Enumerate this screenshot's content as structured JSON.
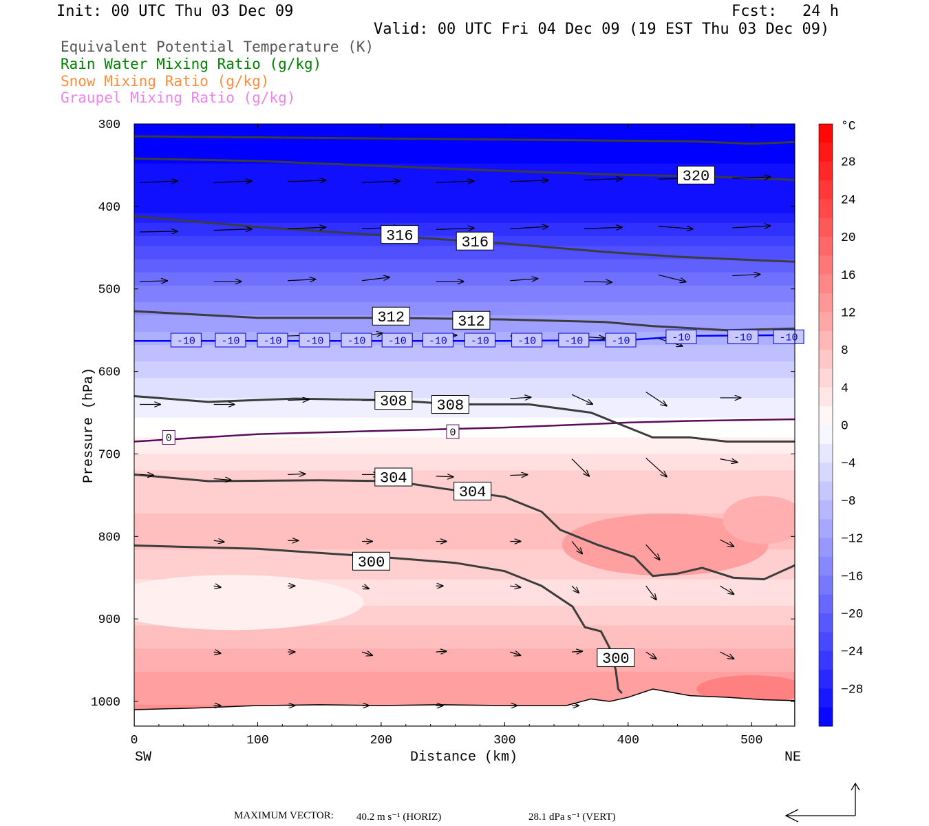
{
  "header": {
    "init": "Init: 00 UTC Thu 03 Dec 09",
    "fcst_label": "Fcst:",
    "fcst_value": "24 h",
    "valid": "Valid: 00 UTC Fri 04 Dec 09 (19 EST Thu 03 Dec 09)"
  },
  "legend": [
    {
      "text": "Equivalent Potential Temperature (K)",
      "color": "#555555"
    },
    {
      "text": "Rain Water Mixing Ratio (g/kg)",
      "color": "#008000"
    },
    {
      "text": "Snow Mixing Ratio (g/kg)",
      "color": "#ff8c3c"
    },
    {
      "text": "Graupel Mixing Ratio (g/kg)",
      "color": "#ee82ee"
    }
  ],
  "footer": {
    "max_vector_label": "MAXIMUM VECTOR:",
    "horiz": "40.2 m s⁻¹ (HORIZ)",
    "vert": "28.1 dPa s⁻¹ (VERT)"
  },
  "chart_data": {
    "type": "cross-section",
    "xlabel": "Distance (km)",
    "ylabel": "Pressure (hPa)",
    "x_end_left": "SW",
    "x_end_right": "NE",
    "xlim": [
      0,
      535
    ],
    "ylim": [
      1030,
      300
    ],
    "x_ticks": [
      0,
      100,
      200,
      300,
      400,
      500
    ],
    "y_ticks": [
      300,
      400,
      500,
      600,
      700,
      800,
      900,
      1000
    ],
    "colorbar": {
      "unit": "°C",
      "range": [
        -32,
        32
      ],
      "tick_values": [
        28,
        24,
        20,
        16,
        12,
        8,
        4,
        0,
        -4,
        -8,
        -12,
        -16,
        -20,
        -24,
        -28
      ]
    },
    "temperature_profile": [
      {
        "p": 300,
        "t": -32
      },
      {
        "p": 400,
        "t": -30
      },
      {
        "p": 470,
        "t": -20
      },
      {
        "p": 560,
        "t": -10
      },
      {
        "p": 620,
        "t": -4
      },
      {
        "p": 670,
        "t": 0
      },
      {
        "p": 720,
        "t": 5
      },
      {
        "p": 800,
        "t": 8
      },
      {
        "p": 870,
        "t": 4
      },
      {
        "p": 920,
        "t": 8
      },
      {
        "p": 980,
        "t": 12
      },
      {
        "p": 1030,
        "t": 14
      }
    ],
    "theta_e_contours": [
      {
        "value": 300,
        "label_positions": [
          [
            192,
            830
          ],
          [
            390,
            947
          ]
        ],
        "points": [
          [
            0,
            811
          ],
          [
            100,
            815
          ],
          [
            200,
            825
          ],
          [
            260,
            832
          ],
          [
            300,
            842
          ],
          [
            330,
            860
          ],
          [
            355,
            885
          ],
          [
            365,
            910
          ],
          [
            378,
            915
          ],
          [
            385,
            935
          ],
          [
            390,
            962
          ],
          [
            392,
            985
          ],
          [
            395,
            990
          ]
        ]
      },
      {
        "value": 304,
        "label_positions": [
          [
            210,
            728
          ],
          [
            274,
            745
          ]
        ],
        "points": [
          [
            0,
            725
          ],
          [
            60,
            733
          ],
          [
            150,
            732
          ],
          [
            210,
            733
          ],
          [
            250,
            742
          ],
          [
            300,
            752
          ],
          [
            330,
            770
          ],
          [
            345,
            792
          ],
          [
            375,
            810
          ],
          [
            405,
            825
          ],
          [
            420,
            848
          ],
          [
            440,
            845
          ],
          [
            460,
            838
          ],
          [
            485,
            850
          ],
          [
            510,
            852
          ],
          [
            535,
            835
          ]
        ]
      },
      {
        "value": 308,
        "label_positions": [
          [
            210,
            635
          ],
          [
            256,
            640
          ]
        ],
        "points": [
          [
            0,
            630
          ],
          [
            60,
            637
          ],
          [
            130,
            633
          ],
          [
            210,
            635
          ],
          [
            260,
            640
          ],
          [
            320,
            640
          ],
          [
            370,
            650
          ],
          [
            400,
            668
          ],
          [
            420,
            680
          ],
          [
            450,
            680
          ],
          [
            480,
            685
          ],
          [
            535,
            685
          ]
        ]
      },
      {
        "value": 312,
        "label_positions": [
          [
            208,
            533
          ],
          [
            273,
            538
          ]
        ],
        "points": [
          [
            0,
            527
          ],
          [
            100,
            535
          ],
          [
            200,
            535
          ],
          [
            300,
            537
          ],
          [
            380,
            540
          ],
          [
            420,
            545
          ],
          [
            480,
            550
          ],
          [
            535,
            548
          ]
        ]
      },
      {
        "value": 316,
        "label_positions": [
          [
            215,
            434
          ],
          [
            276,
            442
          ]
        ],
        "points": [
          [
            0,
            412
          ],
          [
            100,
            425
          ],
          [
            200,
            435
          ],
          [
            300,
            445
          ],
          [
            380,
            455
          ],
          [
            440,
            461
          ],
          [
            500,
            465
          ],
          [
            535,
            467
          ]
        ]
      },
      {
        "value": 320,
        "label_positions": [
          [
            455,
            362
          ]
        ],
        "points": [
          [
            0,
            342
          ],
          [
            100,
            345
          ],
          [
            200,
            351
          ],
          [
            300,
            357
          ],
          [
            400,
            362
          ],
          [
            470,
            364
          ],
          [
            535,
            368
          ]
        ]
      },
      {
        "value": 324,
        "label_positions": [],
        "points": [
          [
            0,
            315
          ],
          [
            150,
            317
          ],
          [
            300,
            319
          ],
          [
            450,
            321
          ],
          [
            500,
            324
          ],
          [
            535,
            322
          ]
        ]
      }
    ],
    "temperature_isotherms": [
      {
        "value": -10,
        "color": "#0000ff",
        "label_positions": [
          [
            42,
            562
          ],
          [
            78,
            562
          ],
          [
            112,
            562
          ],
          [
            146,
            562
          ],
          [
            180,
            562
          ],
          [
            213,
            562
          ],
          [
            246,
            562
          ],
          [
            280,
            562
          ],
          [
            318,
            562
          ],
          [
            356,
            562
          ],
          [
            394,
            562
          ],
          [
            443,
            558
          ],
          [
            493,
            558
          ],
          [
            530,
            558
          ]
        ],
        "points": [
          [
            0,
            563
          ],
          [
            100,
            563
          ],
          [
            200,
            563
          ],
          [
            300,
            563
          ],
          [
            400,
            562
          ],
          [
            450,
            557
          ],
          [
            535,
            556
          ]
        ]
      },
      {
        "value": 0,
        "color": "#5a0a5a",
        "label_positions": [
          [
            28,
            680
          ],
          [
            258,
            673
          ]
        ],
        "points": [
          [
            0,
            685
          ],
          [
            100,
            676
          ],
          [
            200,
            672
          ],
          [
            300,
            668
          ],
          [
            400,
            662
          ],
          [
            450,
            660
          ],
          [
            535,
            658
          ]
        ]
      }
    ],
    "wind_vector_rows": [
      {
        "p": 370,
        "vectors": [
          [
            0,
            371,
            55,
            -2
          ],
          [
            60,
            371,
            55,
            -2
          ],
          [
            120,
            370,
            55,
            -2
          ],
          [
            180,
            371,
            55,
            -2
          ],
          [
            240,
            371,
            55,
            -2
          ],
          [
            300,
            370,
            55,
            -2
          ],
          [
            360,
            368,
            55,
            -2
          ],
          [
            420,
            367,
            55,
            -2
          ],
          [
            480,
            366,
            55,
            -2
          ]
        ]
      },
      {
        "p": 430,
        "vectors": [
          [
            0,
            431,
            55,
            -1
          ],
          [
            60,
            429,
            55,
            -2
          ],
          [
            120,
            427,
            55,
            -2
          ],
          [
            180,
            427,
            55,
            -2
          ],
          [
            240,
            428,
            55,
            -2
          ],
          [
            300,
            427,
            55,
            -3
          ],
          [
            360,
            427,
            55,
            -2
          ],
          [
            420,
            424,
            50,
            4
          ],
          [
            480,
            426,
            55,
            -3
          ]
        ]
      },
      {
        "p": 490,
        "vectors": [
          [
            0,
            491,
            40,
            -1
          ],
          [
            60,
            491,
            40,
            0
          ],
          [
            120,
            490,
            40,
            -2
          ],
          [
            180,
            490,
            40,
            -5
          ],
          [
            240,
            491,
            40,
            0
          ],
          [
            300,
            490,
            40,
            -3
          ],
          [
            360,
            491,
            40,
            1
          ],
          [
            420,
            483,
            40,
            10
          ],
          [
            480,
            484,
            40,
            -2
          ]
        ]
      },
      {
        "p": 557,
        "vectors": [
          [
            120,
            557,
            30,
            -1
          ],
          [
            180,
            557,
            30,
            -4
          ],
          [
            240,
            557,
            30,
            -1
          ],
          [
            300,
            557,
            30,
            0
          ],
          [
            360,
            558,
            30,
            2
          ],
          [
            420,
            560,
            35,
            11
          ],
          [
            480,
            556,
            30,
            0
          ]
        ]
      },
      {
        "p": 640,
        "vectors": [
          [
            0,
            640,
            30,
            0
          ],
          [
            60,
            640,
            30,
            0
          ],
          [
            120,
            635,
            30,
            -1
          ],
          [
            180,
            635,
            30,
            -1
          ],
          [
            240,
            636,
            30,
            -1
          ],
          [
            300,
            633,
            30,
            -2
          ],
          [
            350,
            628,
            30,
            14
          ],
          [
            410,
            625,
            30,
            20
          ],
          [
            470,
            632,
            30,
            0
          ]
        ]
      },
      {
        "p": 730,
        "vectors": [
          [
            0,
            725,
            20,
            1
          ],
          [
            60,
            730,
            25,
            2
          ],
          [
            120,
            725,
            25,
            -1
          ],
          [
            180,
            725,
            25,
            0
          ],
          [
            240,
            727,
            25,
            1
          ],
          [
            300,
            726,
            25,
            -1
          ],
          [
            350,
            706,
            25,
            25
          ],
          [
            410,
            705,
            30,
            27
          ],
          [
            470,
            706,
            25,
            5
          ]
        ]
      },
      {
        "p": 805,
        "vectors": [
          [
            60,
            805,
            15,
            2
          ],
          [
            120,
            805,
            15,
            0
          ],
          [
            180,
            806,
            15,
            0
          ],
          [
            240,
            806,
            15,
            0
          ],
          [
            300,
            806,
            15,
            0
          ],
          [
            350,
            806,
            15,
            18
          ],
          [
            410,
            810,
            20,
            22
          ],
          [
            470,
            804,
            20,
            10
          ]
        ]
      },
      {
        "p": 860,
        "vectors": [
          [
            60,
            860,
            10,
            2
          ],
          [
            120,
            860,
            10,
            0
          ],
          [
            180,
            860,
            10,
            4
          ],
          [
            240,
            860,
            10,
            0
          ],
          [
            300,
            860,
            15,
            2
          ],
          [
            350,
            860,
            10,
            10
          ],
          [
            410,
            860,
            15,
            20
          ],
          [
            470,
            860,
            20,
            12
          ]
        ]
      },
      {
        "p": 940,
        "vectors": [
          [
            60,
            940,
            10,
            2
          ],
          [
            120,
            940,
            10,
            0
          ],
          [
            180,
            940,
            15,
            5
          ],
          [
            240,
            940,
            15,
            -1
          ],
          [
            300,
            940,
            15,
            5
          ],
          [
            350,
            940,
            15,
            -1
          ],
          [
            410,
            940,
            15,
            10
          ],
          [
            470,
            940,
            20,
            10
          ]
        ]
      },
      {
        "p": 1005,
        "vectors": [
          [
            60,
            1005,
            10,
            0
          ],
          [
            120,
            1005,
            10,
            0
          ],
          [
            180,
            1005,
            10,
            0
          ],
          [
            240,
            1005,
            10,
            0
          ],
          [
            300,
            1005,
            10,
            0
          ],
          [
            350,
            1005,
            10,
            0
          ]
        ]
      }
    ],
    "terrain_surface": [
      [
        0,
        1010
      ],
      [
        50,
        1008
      ],
      [
        100,
        1005
      ],
      [
        150,
        1004
      ],
      [
        200,
        1005
      ],
      [
        250,
        1004
      ],
      [
        300,
        1005
      ],
      [
        350,
        1005
      ],
      [
        370,
        997
      ],
      [
        385,
        1000
      ],
      [
        400,
        995
      ],
      [
        420,
        985
      ],
      [
        450,
        993
      ],
      [
        480,
        995
      ],
      [
        510,
        998
      ],
      [
        535,
        999
      ]
    ]
  }
}
